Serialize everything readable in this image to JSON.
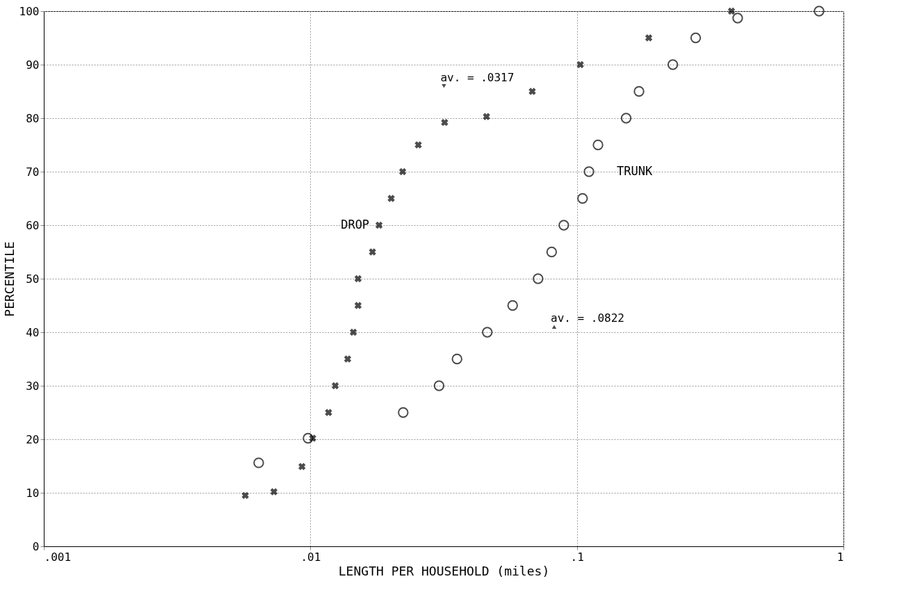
{
  "chart_data": {
    "type": "scatter",
    "xlabel": "LENGTH PER HOUSEHOLD (miles)",
    "ylabel": "PERCENTILE",
    "log": "x",
    "grid": true,
    "legend": false,
    "xlim": [
      0.001,
      1
    ],
    "xticks": [
      {
        "value": 0.001,
        "label": ".001"
      },
      {
        "value": 0.01,
        "label": ".01"
      },
      {
        "value": 0.1,
        "label": ".1"
      },
      {
        "value": 1,
        "label": "1"
      }
    ],
    "ylim": [
      0,
      100
    ],
    "yticks": [
      0,
      10,
      20,
      30,
      40,
      50,
      60,
      70,
      80,
      90,
      100
    ],
    "series": [
      {
        "name": "DROP",
        "color": "#000000",
        "marker": "cross",
        "x": [
          0.0057,
          0.0073,
          0.0093,
          0.0102,
          0.0117,
          0.0124,
          0.0138,
          0.0145,
          0.0151,
          0.0151,
          0.0171,
          0.0181,
          0.0201,
          0.0222,
          0.0254,
          0.0319,
          0.0458,
          0.068,
          0.103,
          0.186,
          0.38
        ],
        "values": [
          9.5,
          10.2,
          14.9,
          20.2,
          25,
          30,
          35,
          40,
          45,
          50,
          55,
          60,
          65,
          70,
          75,
          79.2,
          80.3,
          85,
          90,
          95,
          100
        ]
      },
      {
        "name": "TRUNK",
        "color": "#000000",
        "marker": "circle",
        "x": [
          0.0064,
          0.0098,
          0.0223,
          0.0304,
          0.0355,
          0.0461,
          0.0574,
          0.0715,
          0.0804,
          0.0893,
          0.105,
          0.111,
          0.12,
          0.153,
          0.171,
          0.229,
          0.279,
          0.401,
          0.81
        ],
        "values": [
          15.6,
          20.2,
          25,
          30,
          35,
          40,
          45,
          50,
          55,
          60,
          65,
          70,
          75,
          80,
          85,
          90,
          95,
          98.7,
          100
        ]
      }
    ],
    "annotations": [
      {
        "text": "av. = .0317",
        "x": 0.0317,
        "y": 86
      },
      {
        "text": "av. = .0822",
        "x": 0.0822,
        "y": 41
      }
    ]
  }
}
